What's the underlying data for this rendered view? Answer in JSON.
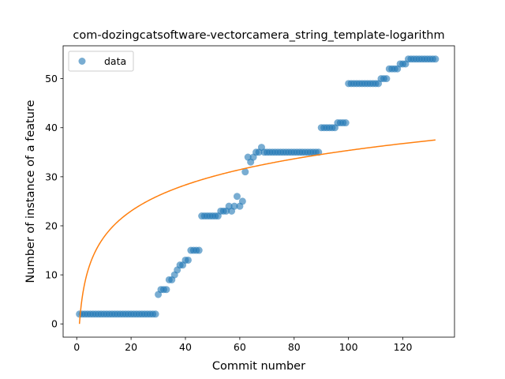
{
  "chart_data": {
    "type": "scatter",
    "title": "com-dozingcatsoftware-vectorcamera_string_template-logarithm",
    "xlabel": "Commit number",
    "ylabel": "Number of instance of a feature",
    "xlim": [
      -5,
      139
    ],
    "ylim": [
      -2.7,
      56.7
    ],
    "xticks": [
      0,
      20,
      40,
      60,
      80,
      100,
      120
    ],
    "yticks": [
      0,
      10,
      20,
      30,
      40,
      50
    ],
    "legend_position": "upper left",
    "colors": {
      "data": "#1f77b4",
      "fit": "#ff7f0e"
    },
    "series": [
      {
        "name": "data",
        "kind": "points",
        "segments": [
          {
            "x_start": 1,
            "x_end": 29,
            "y": 2
          },
          {
            "x_start": 30,
            "x_end": 30,
            "y": 6
          },
          {
            "x_start": 31,
            "x_end": 33,
            "y": 7
          },
          {
            "x_start": 34,
            "x_end": 35,
            "y": 9
          },
          {
            "x_start": 36,
            "x_end": 36,
            "y": 10
          },
          {
            "x_start": 37,
            "x_end": 37,
            "y": 11
          },
          {
            "x_start": 38,
            "x_end": 39,
            "y": 12
          },
          {
            "x_start": 40,
            "x_end": 41,
            "y": 13
          },
          {
            "x_start": 42,
            "x_end": 45,
            "y": 15
          },
          {
            "x_start": 46,
            "x_end": 52,
            "y": 22
          },
          {
            "x_start": 53,
            "x_end": 55,
            "y": 23
          },
          {
            "x_start": 56,
            "x_end": 56,
            "y": 24
          },
          {
            "x_start": 57,
            "x_end": 57,
            "y": 23
          },
          {
            "x_start": 58,
            "x_end": 58,
            "y": 24
          },
          {
            "x_start": 59,
            "x_end": 59,
            "y": 26
          },
          {
            "x_start": 60,
            "x_end": 60,
            "y": 24
          },
          {
            "x_start": 61,
            "x_end": 61,
            "y": 25
          },
          {
            "x_start": 62,
            "x_end": 62,
            "y": 31
          },
          {
            "x_start": 63,
            "x_end": 63,
            "y": 34
          },
          {
            "x_start": 64,
            "x_end": 64,
            "y": 33
          },
          {
            "x_start": 65,
            "x_end": 65,
            "y": 34
          },
          {
            "x_start": 66,
            "x_end": 67,
            "y": 35
          },
          {
            "x_start": 68,
            "x_end": 68,
            "y": 36
          },
          {
            "x_start": 69,
            "x_end": 89,
            "y": 35
          },
          {
            "x_start": 90,
            "x_end": 95,
            "y": 40
          },
          {
            "x_start": 96,
            "x_end": 99,
            "y": 41
          },
          {
            "x_start": 100,
            "x_end": 111,
            "y": 49
          },
          {
            "x_start": 112,
            "x_end": 114,
            "y": 50
          },
          {
            "x_start": 115,
            "x_end": 118,
            "y": 52
          },
          {
            "x_start": 119,
            "x_end": 121,
            "y": 53
          },
          {
            "x_start": 122,
            "x_end": 132,
            "y": 54
          }
        ]
      },
      {
        "name": "",
        "kind": "line",
        "fit": {
          "form": "a + b*ln(x)",
          "a": 0.0,
          "b": 7.68,
          "x_start": 1,
          "x_end": 132
        }
      }
    ]
  }
}
